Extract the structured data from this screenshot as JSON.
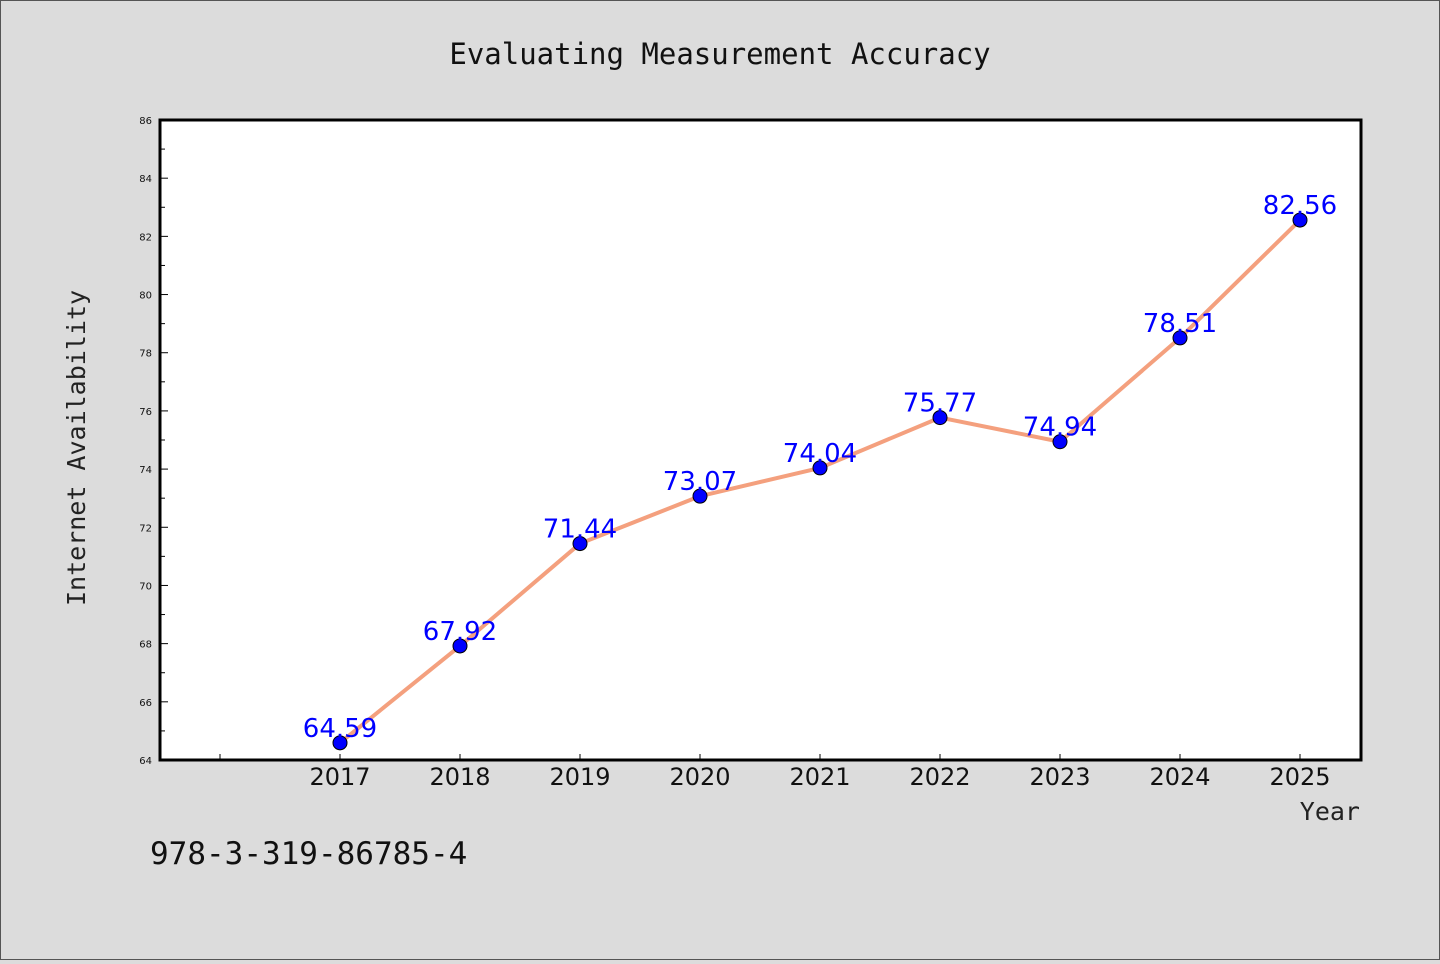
{
  "chart_data": {
    "type": "line",
    "title": "Evaluating Measurement Accuracy",
    "xlabel": "Year",
    "ylabel": "Internet Availability",
    "categories": [
      "2017",
      "2018",
      "2019",
      "2020",
      "2021",
      "2022",
      "2023",
      "2024",
      "2025"
    ],
    "series": [
      {
        "values": [
          64.59,
          67.92,
          71.44,
          73.07,
          74.04,
          75.77,
          74.94,
          78.51,
          82.56
        ],
        "labels": [
          "64.59",
          "67.92",
          "71.44",
          "73.07",
          "74.04",
          "75.77",
          "74.94",
          "78.51",
          "82.56"
        ],
        "line_color": "#f4a07e",
        "marker_color": "#0000ff"
      }
    ],
    "ylim": [
      64,
      86
    ],
    "yticks": [
      "64",
      "66",
      "68",
      "70",
      "72",
      "74",
      "76",
      "78",
      "80",
      "82",
      "84",
      "86"
    ],
    "grid": false,
    "legend": "none"
  },
  "footer_text": "978-3-319-86785-4",
  "colors": {
    "background": "#dcdcdc",
    "plot_background": "#ffffff",
    "line": "#f4a07e",
    "marker": "#0000ff",
    "data_label": "#0000ff"
  }
}
